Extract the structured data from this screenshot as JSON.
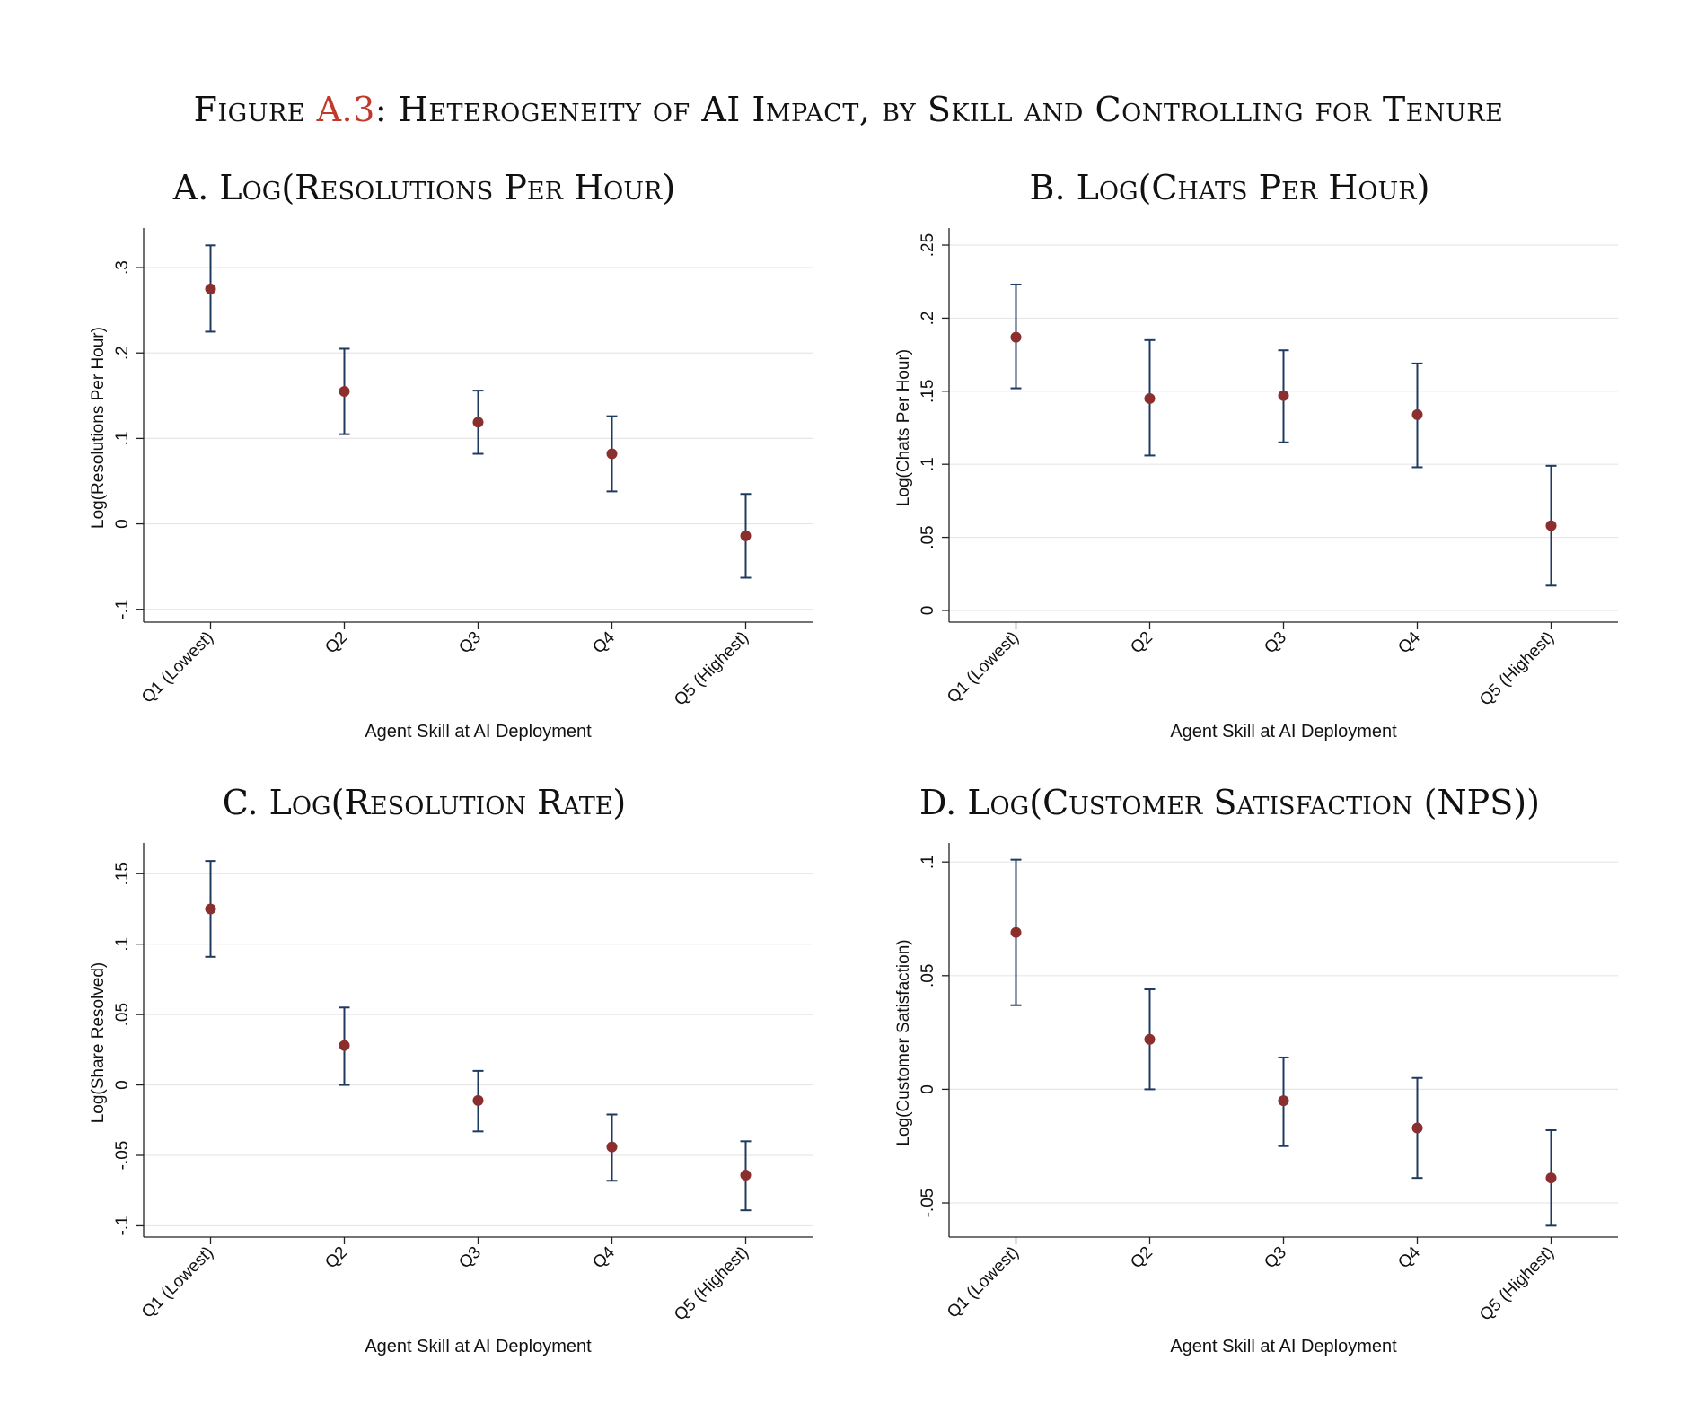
{
  "figure": {
    "prefix": "Figure ",
    "ref": "A.3",
    "title": ": Heterogeneity of AI Impact, by Skill and Controlling for Tenure"
  },
  "chart_data": [
    {
      "type": "scatter",
      "panel_title": "A. Log(Resolutions Per Hour)",
      "ylabel": "Log(Resolutions Per Hour)",
      "xlabel": "Agent Skill at AI Deployment",
      "categories": [
        "Q1 (Lowest)",
        "Q2",
        "Q3",
        "Q4",
        "Q5 (Highest)"
      ],
      "values": [
        0.275,
        0.155,
        0.119,
        0.082,
        -0.014
      ],
      "ci_low": [
        0.225,
        0.105,
        0.082,
        0.038,
        -0.063
      ],
      "ci_high": [
        0.326,
        0.205,
        0.156,
        0.126,
        0.035
      ],
      "ylim": [
        -0.115,
        0.34
      ],
      "yticks": [
        -0.1,
        0,
        0.1,
        0.2,
        0.3
      ],
      "yticklabels": [
        "-.1",
        "0",
        ".1",
        ".2",
        ".3"
      ],
      "grid": true,
      "colors": {
        "point": "#8b2e2e",
        "bar": "#1f3a5f"
      }
    },
    {
      "type": "scatter",
      "panel_title": "B. Log(Chats Per Hour)",
      "ylabel": "Log(Chats Per Hour)",
      "xlabel": "Agent Skill at AI Deployment",
      "categories": [
        "Q1 (Lowest)",
        "Q2",
        "Q3",
        "Q4",
        "Q5 (Highest)"
      ],
      "values": [
        0.187,
        0.145,
        0.147,
        0.134,
        0.058
      ],
      "ci_low": [
        0.152,
        0.106,
        0.115,
        0.098,
        0.017
      ],
      "ci_high": [
        0.223,
        0.185,
        0.178,
        0.169,
        0.099
      ],
      "ylim": [
        -0.008,
        0.258
      ],
      "yticks": [
        0,
        0.05,
        0.1,
        0.15,
        0.2,
        0.25
      ],
      "yticklabels": [
        "0",
        ".05",
        ".1",
        ".15",
        ".2",
        ".25"
      ],
      "grid": true,
      "colors": {
        "point": "#8b2e2e",
        "bar": "#1f3a5f"
      }
    },
    {
      "type": "scatter",
      "panel_title": "C. Log(Resolution Rate)",
      "ylabel": "Log(Share Resolved)",
      "xlabel": "Agent Skill at AI Deployment",
      "categories": [
        "Q1 (Lowest)",
        "Q2",
        "Q3",
        "Q4",
        "Q5 (Highest)"
      ],
      "values": [
        0.125,
        0.028,
        -0.011,
        -0.044,
        -0.064
      ],
      "ci_low": [
        0.091,
        0.0,
        -0.033,
        -0.068,
        -0.089
      ],
      "ci_high": [
        0.159,
        0.055,
        0.01,
        -0.021,
        -0.04
      ],
      "ylim": [
        -0.108,
        0.168
      ],
      "yticks": [
        -0.1,
        -0.05,
        0,
        0.05,
        0.1,
        0.15
      ],
      "yticklabels": [
        "-.1",
        "-.05",
        "0",
        ".05",
        ".1",
        ".15"
      ],
      "grid": true,
      "colors": {
        "point": "#8b2e2e",
        "bar": "#1f3a5f"
      }
    },
    {
      "type": "scatter",
      "panel_title": "D. Log(Customer Satisfaction (NPS))",
      "ylabel": "Log(Customer Satisfaction)",
      "xlabel": "Agent Skill at AI Deployment",
      "categories": [
        "Q1 (Lowest)",
        "Q2",
        "Q3",
        "Q4",
        "Q5 (Highest)"
      ],
      "values": [
        0.069,
        0.022,
        -0.005,
        -0.017,
        -0.039
      ],
      "ci_low": [
        0.037,
        0.0,
        -0.025,
        -0.039,
        -0.06
      ],
      "ci_high": [
        0.101,
        0.044,
        0.014,
        0.005,
        -0.018
      ],
      "ylim": [
        -0.065,
        0.106
      ],
      "yticks": [
        -0.05,
        0,
        0.05,
        0.1
      ],
      "yticklabels": [
        "-.05",
        "0",
        ".05",
        ".1"
      ],
      "grid": true,
      "colors": {
        "point": "#8b2e2e",
        "bar": "#1f3a5f"
      }
    }
  ]
}
